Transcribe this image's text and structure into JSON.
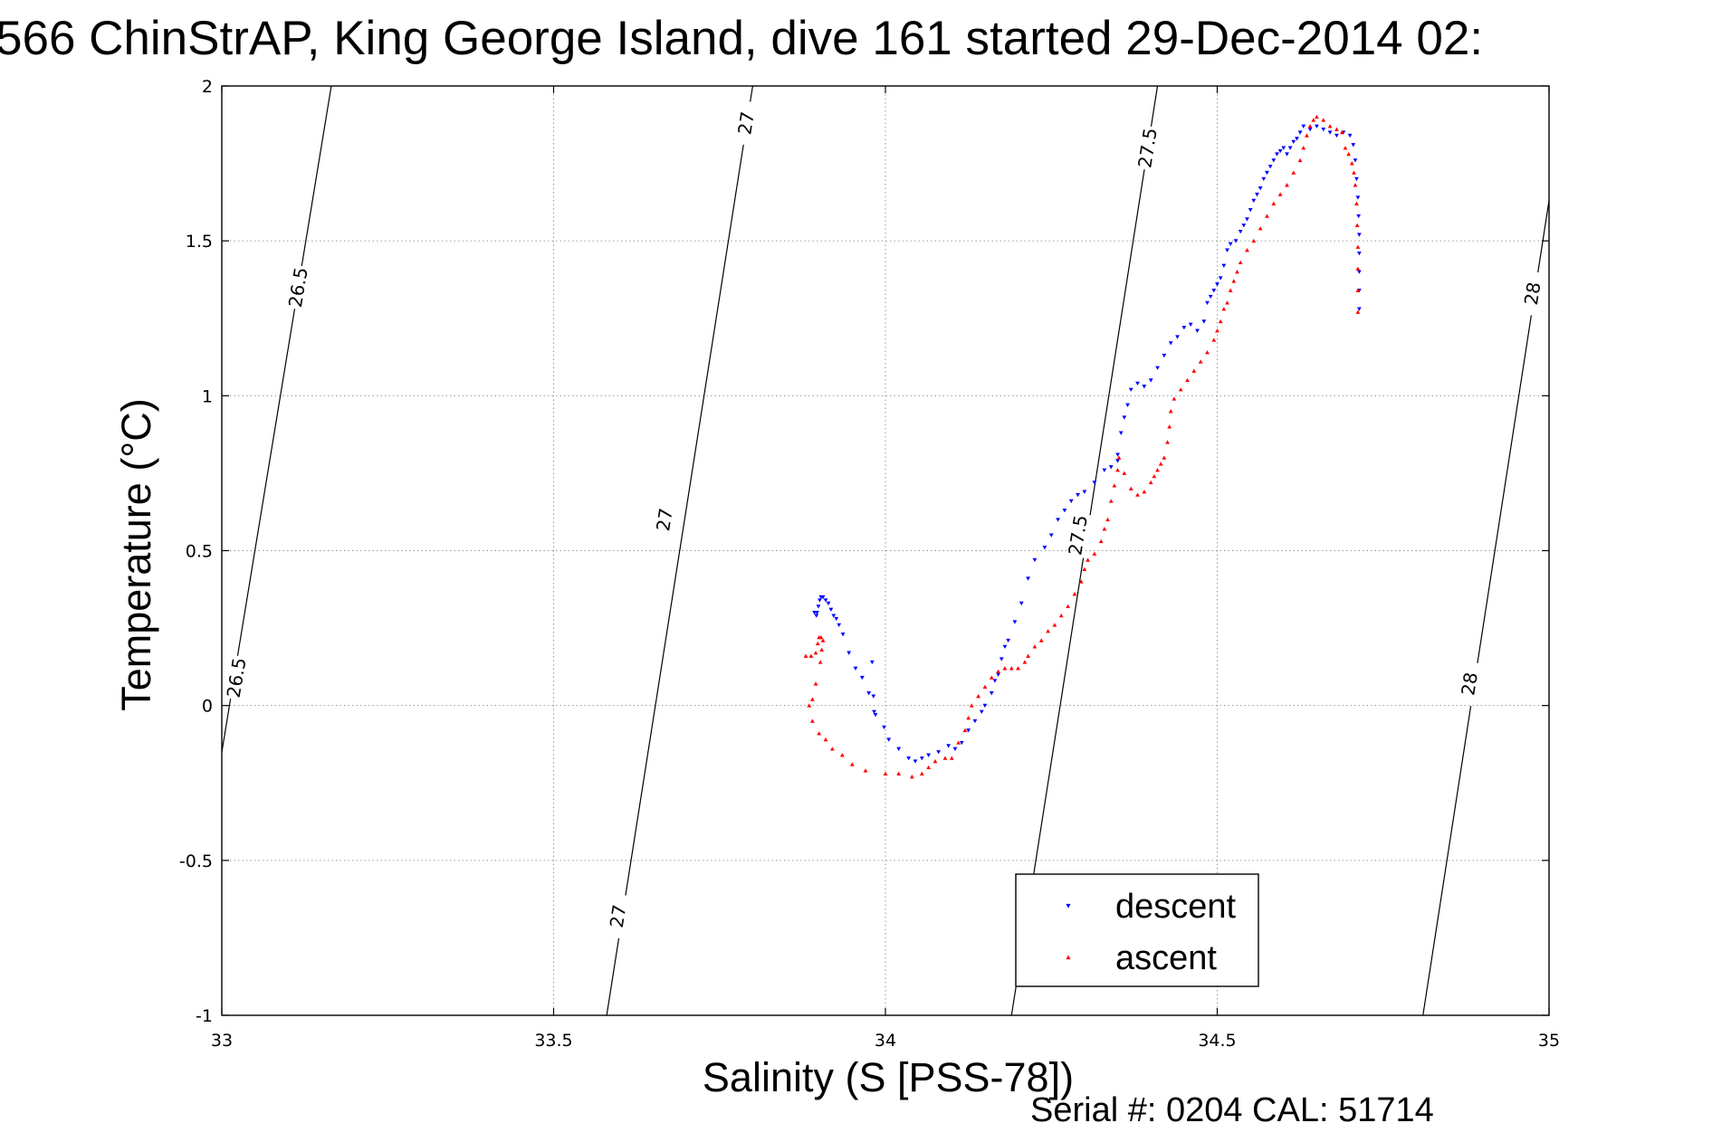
{
  "chart_data": {
    "type": "scatter",
    "title": "566 ChinStrAP, King George Island, dive 161 started 29-Dec-2014 02:",
    "xlabel": "Salinity (S [PSS-78])",
    "ylabel": "Temperature (°C)",
    "xlim": [
      33,
      35
    ],
    "ylim": [
      -1,
      2
    ],
    "xticks": [
      33,
      33.5,
      34,
      34.5,
      35
    ],
    "xtick_labels": [
      "33",
      "33.5",
      "34",
      "34.5",
      "35"
    ],
    "yticks": [
      -1,
      -0.5,
      0,
      0.5,
      1,
      1.5,
      2
    ],
    "ytick_labels": [
      "-1",
      "-0.5",
      "0",
      "0.5",
      "1",
      "1.5",
      "2"
    ],
    "grid": true,
    "legend_position": "bottom-center",
    "footer": "Serial #: 0204  CAL: 51714",
    "density_contours": [
      {
        "label": "26.5",
        "line": [
          [
            33.0,
            -0.15
          ],
          [
            33.165,
            2.0
          ]
        ],
        "labels_at": [
          [
            33.022,
            0.09
          ],
          [
            33.115,
            1.35
          ]
        ]
      },
      {
        "label": "27",
        "line": [
          [
            33.58,
            -1.0
          ],
          [
            33.8,
            2.0
          ]
        ],
        "labels_at": [
          [
            33.597,
            -0.68
          ],
          [
            33.667,
            0.6
          ],
          [
            33.79,
            1.88
          ]
        ]
      },
      {
        "label": "27.5",
        "line": [
          [
            34.19,
            -1.0
          ],
          [
            34.41,
            2.0
          ]
        ],
        "labels_at": [
          [
            34.29,
            0.55
          ],
          [
            34.395,
            1.8
          ]
        ]
      },
      {
        "label": "28",
        "line": [
          [
            34.81,
            -1.0
          ],
          [
            35.0,
            1.63
          ]
        ],
        "labels_at": [
          [
            34.88,
            0.07
          ],
          [
            34.975,
            1.33
          ]
        ]
      }
    ],
    "series": [
      {
        "name": "descent",
        "color": "#0000ff",
        "marker": "triangle-down",
        "points": [
          [
            33.893,
            0.3
          ],
          [
            33.896,
            0.29
          ],
          [
            33.897,
            0.3
          ],
          [
            33.899,
            0.32
          ],
          [
            33.901,
            0.34
          ],
          [
            33.903,
            0.35
          ],
          [
            33.906,
            0.35
          ],
          [
            33.91,
            0.34
          ],
          [
            33.914,
            0.33
          ],
          [
            33.918,
            0.31
          ],
          [
            33.922,
            0.29
          ],
          [
            33.926,
            0.28
          ],
          [
            33.93,
            0.26
          ],
          [
            33.936,
            0.23
          ],
          [
            33.945,
            0.17
          ],
          [
            33.955,
            0.12
          ],
          [
            33.965,
            0.09
          ],
          [
            33.975,
            0.04
          ],
          [
            33.98,
            0.14
          ],
          [
            33.982,
            0.03
          ],
          [
            33.983,
            -0.02
          ],
          [
            33.985,
            -0.03
          ],
          [
            33.998,
            -0.07
          ],
          [
            34.005,
            -0.11
          ],
          [
            34.02,
            -0.14
          ],
          [
            34.035,
            -0.17
          ],
          [
            34.045,
            -0.18
          ],
          [
            34.055,
            -0.17
          ],
          [
            34.065,
            -0.16
          ],
          [
            34.08,
            -0.15
          ],
          [
            34.095,
            -0.13
          ],
          [
            34.105,
            -0.14
          ],
          [
            34.115,
            -0.12
          ],
          [
            34.125,
            -0.08
          ],
          [
            34.135,
            -0.05
          ],
          [
            34.145,
            -0.02
          ],
          [
            34.15,
            0.0
          ],
          [
            34.16,
            0.04
          ],
          [
            34.165,
            0.08
          ],
          [
            34.17,
            0.1
          ],
          [
            34.175,
            0.15
          ],
          [
            34.18,
            0.19
          ],
          [
            34.185,
            0.21
          ],
          [
            34.195,
            0.27
          ],
          [
            34.205,
            0.33
          ],
          [
            34.215,
            0.41
          ],
          [
            34.225,
            0.47
          ],
          [
            34.24,
            0.51
          ],
          [
            34.25,
            0.55
          ],
          [
            34.26,
            0.6
          ],
          [
            34.27,
            0.63
          ],
          [
            34.28,
            0.66
          ],
          [
            34.29,
            0.68
          ],
          [
            34.3,
            0.69
          ],
          [
            34.315,
            0.72
          ],
          [
            34.33,
            0.76
          ],
          [
            34.34,
            0.77
          ],
          [
            34.35,
            0.79
          ],
          [
            34.35,
            0.81
          ],
          [
            34.355,
            0.88
          ],
          [
            34.36,
            0.93
          ],
          [
            34.365,
            0.97
          ],
          [
            34.37,
            1.02
          ],
          [
            34.38,
            1.04
          ],
          [
            34.39,
            1.03
          ],
          [
            34.4,
            1.05
          ],
          [
            34.41,
            1.09
          ],
          [
            34.42,
            1.13
          ],
          [
            34.43,
            1.17
          ],
          [
            34.44,
            1.19
          ],
          [
            34.45,
            1.22
          ],
          [
            34.46,
            1.23
          ],
          [
            34.47,
            1.21
          ],
          [
            34.48,
            1.24
          ],
          [
            34.485,
            1.3
          ],
          [
            34.49,
            1.32
          ],
          [
            34.495,
            1.34
          ],
          [
            34.5,
            1.36
          ],
          [
            34.505,
            1.38
          ],
          [
            34.51,
            1.42
          ],
          [
            34.515,
            1.47
          ],
          [
            34.52,
            1.49
          ],
          [
            34.528,
            1.5
          ],
          [
            34.535,
            1.53
          ],
          [
            34.54,
            1.55
          ],
          [
            34.545,
            1.57
          ],
          [
            34.55,
            1.6
          ],
          [
            34.555,
            1.63
          ],
          [
            34.56,
            1.65
          ],
          [
            34.565,
            1.67
          ],
          [
            34.57,
            1.7
          ],
          [
            34.575,
            1.72
          ],
          [
            34.58,
            1.74
          ],
          [
            34.585,
            1.76
          ],
          [
            34.59,
            1.78
          ],
          [
            34.595,
            1.79
          ],
          [
            34.6,
            1.8
          ],
          [
            34.605,
            1.78
          ],
          [
            34.61,
            1.8
          ],
          [
            34.615,
            1.82
          ],
          [
            34.62,
            1.83
          ],
          [
            34.625,
            1.85
          ],
          [
            34.63,
            1.87
          ],
          [
            34.64,
            1.86
          ],
          [
            34.65,
            1.87
          ],
          [
            34.66,
            1.86
          ],
          [
            34.67,
            1.85
          ],
          [
            34.68,
            1.84
          ],
          [
            34.69,
            1.85
          ],
          [
            34.7,
            1.84
          ],
          [
            34.705,
            1.81
          ],
          [
            34.708,
            1.76
          ],
          [
            34.71,
            1.7
          ],
          [
            34.712,
            1.64
          ],
          [
            34.713,
            1.58
          ],
          [
            34.714,
            1.52
          ],
          [
            34.714,
            1.46
          ],
          [
            34.714,
            1.4
          ],
          [
            34.714,
            1.34
          ],
          [
            34.714,
            1.28
          ]
        ]
      },
      {
        "name": "ascent",
        "color": "#ff0000",
        "marker": "triangle-up",
        "points": [
          [
            33.88,
            0.16
          ],
          [
            33.888,
            0.16
          ],
          [
            33.895,
            0.17
          ],
          [
            33.898,
            0.2
          ],
          [
            33.9,
            0.22
          ],
          [
            33.903,
            0.22
          ],
          [
            33.906,
            0.21
          ],
          [
            33.904,
            0.18
          ],
          [
            33.902,
            0.14
          ],
          [
            33.895,
            0.07
          ],
          [
            33.89,
            0.02
          ],
          [
            33.885,
            0.0
          ],
          [
            33.89,
            -0.05
          ],
          [
            33.9,
            -0.09
          ],
          [
            33.91,
            -0.11
          ],
          [
            33.92,
            -0.14
          ],
          [
            33.935,
            -0.16
          ],
          [
            33.95,
            -0.19
          ],
          [
            33.97,
            -0.21
          ],
          [
            34.0,
            -0.22
          ],
          [
            34.02,
            -0.22
          ],
          [
            34.04,
            -0.23
          ],
          [
            34.055,
            -0.22
          ],
          [
            34.065,
            -0.2
          ],
          [
            34.075,
            -0.18
          ],
          [
            34.09,
            -0.17
          ],
          [
            34.1,
            -0.17
          ],
          [
            34.11,
            -0.12
          ],
          [
            34.12,
            -0.08
          ],
          [
            34.125,
            -0.04
          ],
          [
            34.13,
            0.0
          ],
          [
            34.14,
            0.03
          ],
          [
            34.15,
            0.06
          ],
          [
            34.16,
            0.09
          ],
          [
            34.17,
            0.11
          ],
          [
            34.18,
            0.12
          ],
          [
            34.19,
            0.12
          ],
          [
            34.2,
            0.12
          ],
          [
            34.21,
            0.14
          ],
          [
            34.215,
            0.16
          ],
          [
            34.225,
            0.19
          ],
          [
            34.235,
            0.21
          ],
          [
            34.245,
            0.24
          ],
          [
            34.255,
            0.26
          ],
          [
            34.265,
            0.29
          ],
          [
            34.275,
            0.32
          ],
          [
            34.285,
            0.36
          ],
          [
            34.295,
            0.4
          ],
          [
            34.3,
            0.44
          ],
          [
            34.305,
            0.47
          ],
          [
            34.315,
            0.49
          ],
          [
            34.325,
            0.53
          ],
          [
            34.33,
            0.57
          ],
          [
            34.335,
            0.6
          ],
          [
            34.34,
            0.66
          ],
          [
            34.345,
            0.71
          ],
          [
            34.35,
            0.76
          ],
          [
            34.352,
            0.8
          ],
          [
            34.36,
            0.75
          ],
          [
            34.37,
            0.7
          ],
          [
            34.38,
            0.68
          ],
          [
            34.39,
            0.69
          ],
          [
            34.4,
            0.72
          ],
          [
            34.405,
            0.74
          ],
          [
            34.41,
            0.76
          ],
          [
            34.415,
            0.78
          ],
          [
            34.42,
            0.8
          ],
          [
            34.425,
            0.85
          ],
          [
            34.428,
            0.9
          ],
          [
            34.43,
            0.95
          ],
          [
            34.435,
            0.99
          ],
          [
            34.445,
            1.02
          ],
          [
            34.455,
            1.05
          ],
          [
            34.465,
            1.08
          ],
          [
            34.475,
            1.11
          ],
          [
            34.485,
            1.14
          ],
          [
            34.495,
            1.18
          ],
          [
            34.5,
            1.21
          ],
          [
            34.505,
            1.24
          ],
          [
            34.51,
            1.28
          ],
          [
            34.515,
            1.3
          ],
          [
            34.52,
            1.34
          ],
          [
            34.525,
            1.37
          ],
          [
            34.53,
            1.4
          ],
          [
            34.535,
            1.43
          ],
          [
            34.545,
            1.47
          ],
          [
            34.555,
            1.5
          ],
          [
            34.565,
            1.54
          ],
          [
            34.575,
            1.58
          ],
          [
            34.585,
            1.62
          ],
          [
            34.595,
            1.65
          ],
          [
            34.605,
            1.68
          ],
          [
            34.615,
            1.72
          ],
          [
            34.625,
            1.76
          ],
          [
            34.63,
            1.8
          ],
          [
            34.635,
            1.84
          ],
          [
            34.64,
            1.87
          ],
          [
            34.645,
            1.89
          ],
          [
            34.65,
            1.9
          ],
          [
            34.66,
            1.89
          ],
          [
            34.67,
            1.87
          ],
          [
            34.68,
            1.86
          ],
          [
            34.688,
            1.85
          ],
          [
            34.693,
            1.8
          ],
          [
            34.698,
            1.78
          ],
          [
            34.703,
            1.75
          ],
          [
            34.706,
            1.72
          ],
          [
            34.708,
            1.68
          ],
          [
            34.71,
            1.62
          ],
          [
            34.711,
            1.55
          ],
          [
            34.712,
            1.48
          ],
          [
            34.712,
            1.41
          ],
          [
            34.712,
            1.34
          ],
          [
            34.712,
            1.27
          ]
        ]
      }
    ]
  }
}
